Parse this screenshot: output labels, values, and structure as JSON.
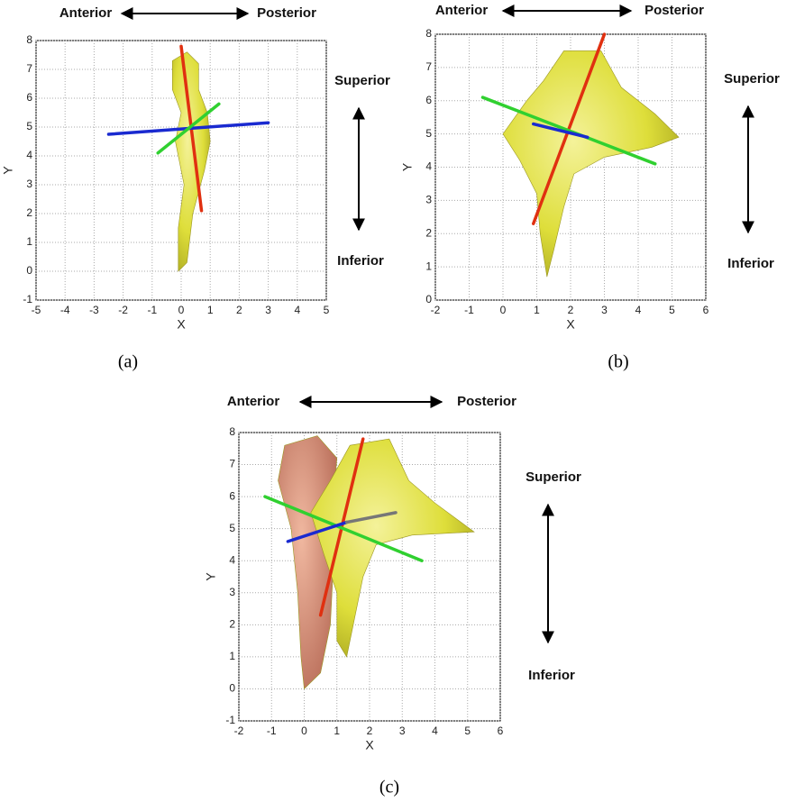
{
  "chart_data": [
    {
      "type": "render3d",
      "xlabel": "X",
      "ylabel": "Y",
      "xlim": [
        -5,
        5
      ],
      "ylim": [
        -1,
        8
      ],
      "xticks": [
        -5,
        -4,
        -3,
        -2,
        -1,
        0,
        1,
        2,
        3,
        4,
        5
      ],
      "yticks": [
        -1,
        0,
        1,
        2,
        3,
        4,
        5,
        6,
        7,
        8
      ],
      "grid": true,
      "annotations": [
        "Anterior",
        "Posterior",
        "Superior",
        "Inferior"
      ],
      "caption": "(a)"
    },
    {
      "type": "render3d",
      "xlabel": "X",
      "ylabel": "Y",
      "xlim": [
        -2,
        6
      ],
      "ylim": [
        0,
        8
      ],
      "xticks": [
        -2,
        -1,
        0,
        1,
        2,
        3,
        4,
        5,
        6
      ],
      "yticks": [
        0,
        1,
        2,
        3,
        4,
        5,
        6,
        7,
        8
      ],
      "grid": true,
      "annotations": [
        "Anterior",
        "Posterior",
        "Superior",
        "Inferior"
      ],
      "caption": "(b)"
    },
    {
      "type": "render3d",
      "xlabel": "X",
      "ylabel": "Y",
      "xlim": [
        -2,
        6
      ],
      "ylim": [
        -1,
        8
      ],
      "xticks": [
        -2,
        -1,
        0,
        1,
        2,
        3,
        4,
        5,
        6
      ],
      "yticks": [
        -1,
        0,
        1,
        2,
        3,
        4,
        5,
        6,
        7,
        8
      ],
      "grid": true,
      "annotations": [
        "Anterior",
        "Posterior",
        "Superior",
        "Inferior"
      ],
      "caption": "(c)"
    }
  ]
}
